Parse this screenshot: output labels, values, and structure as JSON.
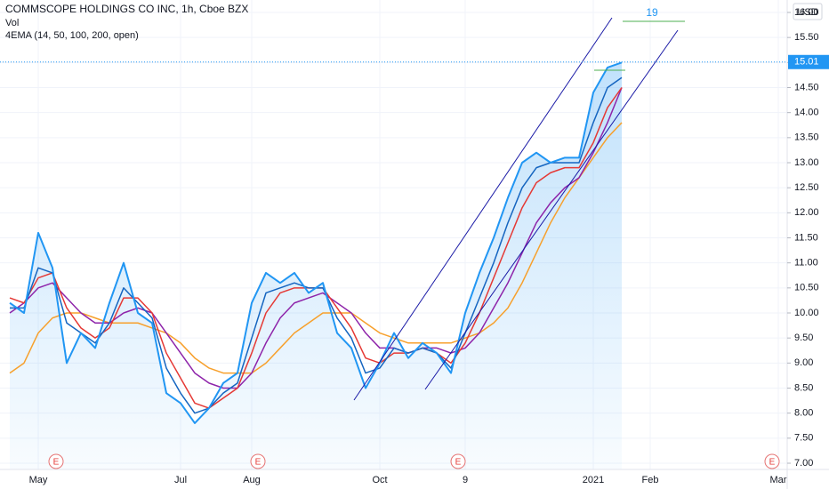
{
  "chart_data": {
    "type": "line",
    "title": "COMMSCOPE HOLDINGS CO INC, 1h, Cboe BZX",
    "volume_label": "Vol",
    "indicator_label": "4EMA (14, 50, 100, 200, open)",
    "currency": "USD",
    "last_price": 15.01,
    "annotation": "19",
    "earnings": [
      "E",
      "E",
      "E",
      "E"
    ],
    "categories": [
      null,
      null,
      "May",
      null,
      null,
      null,
      null,
      null,
      null,
      null,
      null,
      null,
      "Jul",
      null,
      null,
      null,
      null,
      "Aug",
      null,
      null,
      null,
      null,
      null,
      null,
      null,
      null,
      "Oct",
      null,
      null,
      null,
      null,
      null,
      "9",
      null,
      null,
      null,
      null,
      null,
      null,
      null,
      null,
      "2021",
      null,
      null,
      null,
      "Feb",
      null,
      null,
      null,
      null,
      null,
      null,
      null,
      null,
      "Mar"
    ],
    "series": [
      {
        "color": "#f7a02c",
        "values": [
          8.8,
          9.0,
          9.6,
          9.9,
          10.0,
          10.0,
          9.9,
          9.8,
          9.8,
          9.8,
          9.7,
          9.6,
          9.4,
          9.1,
          8.9,
          8.8,
          8.8,
          8.8,
          9.0,
          9.3,
          9.6,
          9.8,
          10.0,
          10.0,
          10.0,
          9.8,
          9.6,
          9.5,
          9.4,
          9.4,
          9.4,
          9.4,
          9.5,
          9.6,
          9.8,
          10.1,
          10.6,
          11.2,
          11.8,
          12.3,
          12.7,
          13.1,
          13.5,
          13.8,
          null,
          null,
          null,
          null,
          null,
          null,
          null,
          null,
          null,
          null,
          null
        ]
      },
      {
        "color": "#8e24aa",
        "values": [
          10.0,
          10.2,
          10.5,
          10.6,
          10.3,
          10.0,
          9.8,
          9.8,
          10.0,
          10.1,
          10.0,
          9.6,
          9.2,
          8.8,
          8.6,
          8.5,
          8.5,
          8.8,
          9.4,
          9.9,
          10.2,
          10.3,
          10.4,
          10.2,
          10.0,
          9.6,
          9.3,
          9.3,
          9.2,
          9.3,
          9.3,
          9.2,
          9.3,
          9.6,
          10.1,
          10.6,
          11.2,
          11.8,
          12.2,
          12.5,
          12.7,
          13.2,
          13.8,
          14.5,
          null,
          null,
          null,
          null,
          null,
          null,
          null,
          null,
          null,
          null,
          null
        ]
      },
      {
        "color": "#e53935",
        "values": [
          10.3,
          10.2,
          10.7,
          10.8,
          10.1,
          9.7,
          9.5,
          9.7,
          10.3,
          10.3,
          10.0,
          9.2,
          8.7,
          8.2,
          8.1,
          8.3,
          8.5,
          9.2,
          10.0,
          10.4,
          10.5,
          10.5,
          10.5,
          10.1,
          9.7,
          9.1,
          9.0,
          9.2,
          9.2,
          9.3,
          9.2,
          9.0,
          9.4,
          10.0,
          10.7,
          11.4,
          12.1,
          12.6,
          12.8,
          12.9,
          12.9,
          13.4,
          14.1,
          14.5,
          null,
          null,
          null,
          null,
          null,
          null,
          null,
          null,
          null,
          null,
          null
        ]
      },
      {
        "color": "#1565c0",
        "values": [
          10.1,
          10.1,
          10.9,
          10.8,
          9.8,
          9.6,
          9.4,
          9.8,
          10.5,
          10.2,
          9.9,
          8.9,
          8.4,
          8.0,
          8.1,
          8.4,
          8.6,
          9.5,
          10.4,
          10.5,
          10.6,
          10.5,
          10.5,
          9.9,
          9.5,
          8.8,
          8.9,
          9.3,
          9.2,
          9.3,
          9.2,
          8.9,
          9.6,
          10.3,
          11.0,
          11.8,
          12.5,
          12.9,
          13.0,
          13.0,
          13.0,
          13.8,
          14.5,
          14.7,
          null,
          null,
          null,
          null,
          null,
          null,
          null,
          null,
          null,
          null,
          null
        ]
      },
      {
        "color": "#2196f3",
        "values": [
          10.2,
          10.0,
          11.6,
          10.9,
          9.0,
          9.6,
          9.3,
          10.2,
          11.0,
          10.0,
          9.8,
          8.4,
          8.2,
          7.8,
          8.1,
          8.6,
          8.8,
          10.2,
          10.8,
          10.6,
          10.8,
          10.4,
          10.6,
          9.6,
          9.3,
          8.5,
          9.0,
          9.6,
          9.1,
          9.4,
          9.2,
          8.8,
          10.0,
          10.8,
          11.5,
          12.3,
          13.0,
          13.2,
          13.0,
          13.1,
          13.1,
          14.4,
          14.9,
          15.0,
          null,
          null,
          null,
          null,
          null,
          null,
          null,
          null,
          null,
          null,
          null
        ]
      }
    ],
    "ylim": [
      7,
      16
    ],
    "yticks": [
      {
        "value": 7,
        "label": "7.00"
      },
      {
        "value": 7.5,
        "label": "7.50"
      },
      {
        "value": 8,
        "label": "8.00"
      },
      {
        "value": 8.5,
        "label": "8.50"
      },
      {
        "value": 9,
        "label": "9.00"
      },
      {
        "value": 9.5,
        "label": "9.50"
      },
      {
        "value": 10,
        "label": "10.00"
      },
      {
        "value": 10.5,
        "label": "10.50"
      },
      {
        "value": 11,
        "label": "11.00"
      },
      {
        "value": 11.5,
        "label": "11.50"
      },
      {
        "value": 12,
        "label": "12.00"
      },
      {
        "value": 12.5,
        "label": "12.50"
      },
      {
        "value": 13,
        "label": "13.00"
      },
      {
        "value": 13.5,
        "label": "13.50"
      },
      {
        "value": 14,
        "label": "14.00"
      },
      {
        "value": 14.5,
        "label": "14.50"
      },
      {
        "value": 15,
        "label": "15.00"
      },
      {
        "value": 15.5,
        "label": "15.50"
      },
      {
        "value": 16,
        "label": "16.00"
      }
    ],
    "grid": true
  }
}
